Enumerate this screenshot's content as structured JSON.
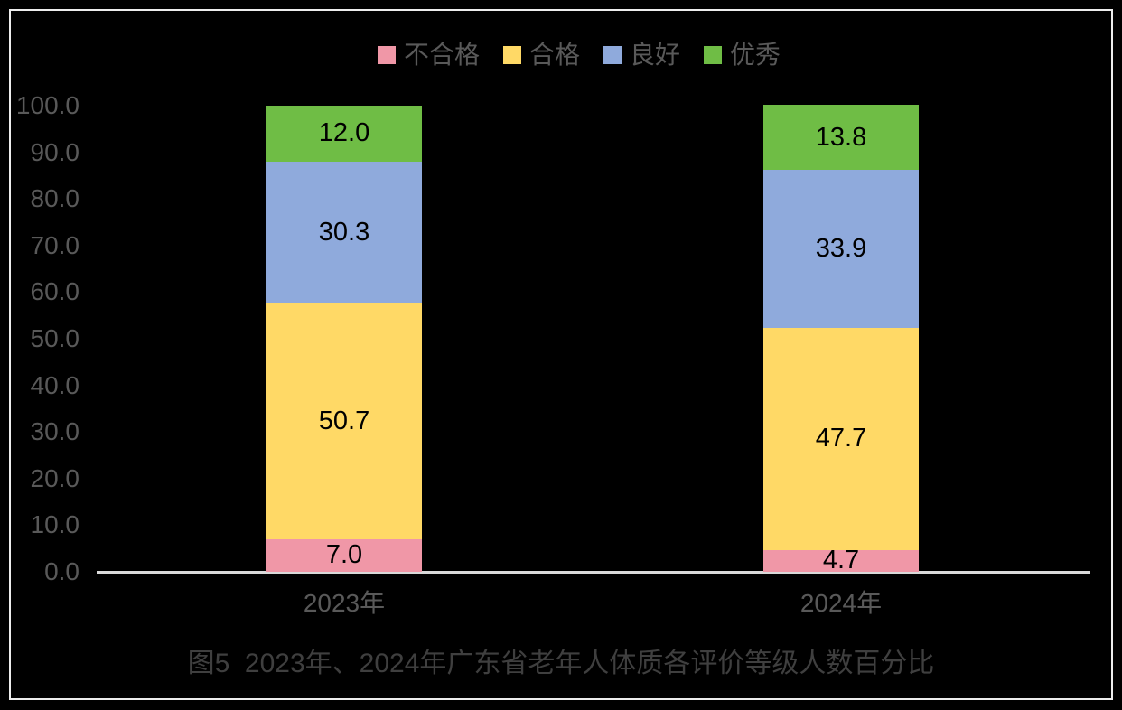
{
  "colors": {
    "background": "#000000",
    "frame_border": "#EDEDED",
    "axis_line": "#D9D9D9",
    "tick_text": "#595959",
    "title_text": "#3F3F3F",
    "data_label_text": "#000000"
  },
  "chart_data": {
    "type": "bar",
    "stacked": true,
    "title": "图5  2023年、2024年广东省老年人体质各评价等级人数百分比",
    "categories": [
      "2023年",
      "2024年"
    ],
    "series": [
      {
        "name": "不合格",
        "color": "#F097A7",
        "values": [
          7.0,
          4.7
        ]
      },
      {
        "name": "合格",
        "color": "#FFD966",
        "values": [
          50.7,
          47.7
        ]
      },
      {
        "name": "良好",
        "color": "#8FAADC",
        "values": [
          30.3,
          33.9
        ]
      },
      {
        "name": "优秀",
        "color": "#6FBD45",
        "values": [
          12.0,
          13.8
        ]
      }
    ],
    "xlabel": "",
    "ylabel": "",
    "ylim": [
      0,
      100
    ],
    "ytick_step": 10,
    "ytick_format": "one-decimal",
    "grid": false,
    "legend_position": "top",
    "data_labels": true
  }
}
